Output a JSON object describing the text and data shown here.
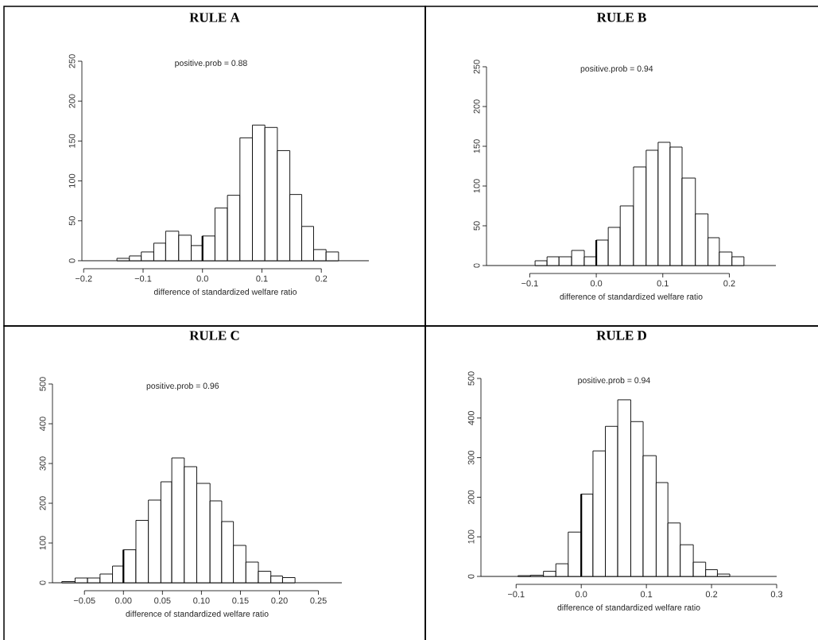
{
  "chart_data": [
    {
      "type": "histogram",
      "title": "RULE A",
      "xlabel": "difference of standardized welfare ratio",
      "color": "#ffffff",
      "bins": [
        -0.144,
        -0.123,
        -0.103,
        -0.082,
        -0.062,
        -0.04,
        -0.019,
        0.0,
        0.021,
        0.042,
        0.063,
        0.084,
        0.105,
        0.126,
        0.147,
        0.167,
        0.187,
        0.208,
        0.229
      ],
      "values": [
        3,
        6,
        11,
        22,
        37,
        32,
        19,
        31,
        66,
        82,
        154,
        170,
        167,
        138,
        83,
        43,
        14,
        11
      ],
      "xlim": [
        -0.203,
        0.28
      ],
      "ylim": [
        -10,
        250
      ],
      "xticks": [
        {
          "value": -0.2,
          "label": "−0.2"
        },
        {
          "value": -0.1,
          "label": "−0.1"
        },
        {
          "value": 0,
          "label": "0.0"
        },
        {
          "value": 0.1,
          "label": "0.1"
        },
        {
          "value": 0.2,
          "label": "0.2"
        }
      ],
      "yticks": [
        0,
        50,
        100,
        150,
        200,
        250
      ],
      "annotations": [
        "positive.prob =  0.88"
      ],
      "ref_lines": [
        {
          "axis": "x",
          "value": 0
        }
      ]
    },
    {
      "type": "histogram",
      "title": "RULE B",
      "xlabel": "difference of standardized welfare ratio",
      "color": "#ffffff",
      "bins": [
        -0.092,
        -0.074,
        -0.056,
        -0.037,
        -0.018,
        0.0,
        0.018,
        0.036,
        0.056,
        0.075,
        0.093,
        0.111,
        0.129,
        0.149,
        0.168,
        0.185,
        0.204,
        0.222
      ],
      "values": [
        6,
        11,
        11,
        19,
        11,
        32,
        48,
        75,
        124,
        145,
        155,
        149,
        110,
        65,
        35,
        17,
        11
      ],
      "xlim": [
        -0.165,
        0.27
      ],
      "ylim": [
        -10,
        250
      ],
      "xticks": [
        {
          "value": -0.1,
          "label": "−0.1"
        },
        {
          "value": 0,
          "label": "0.0"
        },
        {
          "value": 0.1,
          "label": "0.1"
        },
        {
          "value": 0.2,
          "label": "0.2"
        }
      ],
      "yticks": [
        0,
        50,
        100,
        150,
        200,
        250
      ],
      "annotations": [
        "positive.prob =  0.94"
      ],
      "ref_lines": [
        {
          "axis": "x",
          "value": 0
        }
      ]
    },
    {
      "type": "histogram",
      "title": "RULE C",
      "xlabel": "difference of standardized welfare ratio",
      "color": "#ffffff",
      "bins": [
        -0.079,
        -0.062,
        -0.046,
        -0.03,
        -0.014,
        0.0,
        0.016,
        0.032,
        0.048,
        0.062,
        0.078,
        0.094,
        0.111,
        0.126,
        0.141,
        0.157,
        0.173,
        0.189,
        0.204,
        0.22
      ],
      "values": [
        3,
        12,
        12,
        22,
        42,
        83,
        157,
        208,
        254,
        314,
        292,
        250,
        206,
        154,
        94,
        52,
        29,
        17,
        13
      ],
      "xlim": [
        -0.091,
        0.28
      ],
      "ylim": [
        -20,
        500
      ],
      "xticks": [
        {
          "value": -0.05,
          "label": "−0.05"
        },
        {
          "value": 0,
          "label": "0.00"
        },
        {
          "value": 0.05,
          "label": "0.05"
        },
        {
          "value": 0.1,
          "label": "0.10"
        },
        {
          "value": 0.15,
          "label": "0.15"
        },
        {
          "value": 0.2,
          "label": "0.20"
        },
        {
          "value": 0.25,
          "label": "0.25"
        }
      ],
      "yticks": [
        0,
        100,
        200,
        300,
        400,
        500
      ],
      "annotations": [
        "positive.prob =  0.96"
      ],
      "ref_lines": [
        {
          "axis": "x",
          "value": 0
        }
      ]
    },
    {
      "type": "histogram",
      "title": "RULE D",
      "xlabel": "difference of standardized welfare ratio",
      "color": "#ffffff",
      "bins": [
        -0.097,
        -0.078,
        -0.058,
        -0.039,
        -0.02,
        0.0,
        0.018,
        0.037,
        0.056,
        0.076,
        0.095,
        0.115,
        0.133,
        0.152,
        0.172,
        0.191,
        0.209,
        0.228
      ],
      "values": [
        2,
        3,
        13,
        32,
        112,
        208,
        317,
        379,
        446,
        391,
        305,
        237,
        135,
        80,
        36,
        17,
        6
      ],
      "xlim": [
        -0.154,
        0.3
      ],
      "ylim": [
        -20,
        500
      ],
      "xticks": [
        {
          "value": -0.1,
          "label": "−0.1"
        },
        {
          "value": 0,
          "label": "0.0"
        },
        {
          "value": 0.1,
          "label": "0.1"
        },
        {
          "value": 0.2,
          "label": "0.2"
        },
        {
          "value": 0.3,
          "label": "0.3"
        }
      ],
      "yticks": [
        0,
        100,
        200,
        300,
        400,
        500
      ],
      "annotations": [
        "positive.prob =  0.94"
      ],
      "ref_lines": [
        {
          "axis": "x",
          "value": 0
        }
      ]
    }
  ]
}
